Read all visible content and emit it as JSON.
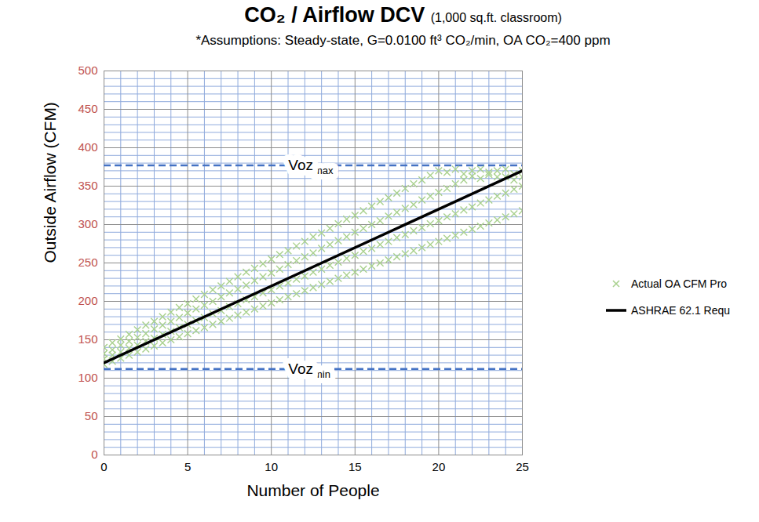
{
  "chart_data": {
    "type": "scatter",
    "title": "CO₂ / Airflow DCV",
    "title_note": "(1,000 sq.ft. classroom)",
    "subtitle": "*Assumptions: Steady-state, G=0.0100 ft³ CO₂/min, OA CO₂=400 ppm",
    "x_label": "Number of People",
    "y_label": "Outside Airflow (CFM)",
    "xlim": [
      0,
      25
    ],
    "xticks": [
      0,
      5,
      10,
      15,
      20,
      25
    ],
    "ylim": [
      0,
      500
    ],
    "yticks": [
      0,
      50,
      100,
      150,
      200,
      250,
      300,
      350,
      400,
      450,
      500
    ],
    "grid": true,
    "legend": "right",
    "reference_lines": [
      {
        "value": 377,
        "label": "Voz",
        "label_subscript": "max",
        "color": "#4472c4",
        "line_style": "dashed"
      },
      {
        "value": 112,
        "label": "Voz",
        "label_subscript": "min",
        "color": "#4472c4",
        "line_style": "dashed"
      }
    ],
    "series": [
      {
        "name": "Actual OA CFM Pro",
        "type": "scatter",
        "marker": "x",
        "color": "#a9d18e",
        "x": [
          0,
          0,
          0,
          0,
          0.5,
          0.5,
          0.5,
          0.5,
          1,
          1,
          1,
          1,
          1.5,
          1.5,
          1.5,
          1.5,
          2,
          2,
          2,
          2,
          2.5,
          2.5,
          2.5,
          2.5,
          3,
          3,
          3,
          3,
          3.5,
          3.5,
          3.5,
          3.5,
          4,
          4,
          4,
          4,
          4.5,
          4.5,
          4.5,
          4.5,
          5,
          5,
          5,
          5,
          5.5,
          5.5,
          5.5,
          5.5,
          6,
          6,
          6,
          6,
          6.5,
          6.5,
          6.5,
          6.5,
          7,
          7,
          7,
          7,
          7.5,
          7.5,
          7.5,
          7.5,
          8,
          8,
          8,
          8,
          8.5,
          8.5,
          8.5,
          8.5,
          9,
          9,
          9,
          9,
          9.5,
          9.5,
          9.5,
          9.5,
          10,
          10,
          10,
          10,
          10.5,
          10.5,
          10.5,
          10.5,
          11,
          11,
          11,
          11,
          11.5,
          11.5,
          11.5,
          11.5,
          12,
          12,
          12,
          12,
          12.5,
          12.5,
          12.5,
          12.5,
          13,
          13,
          13,
          13,
          13.5,
          13.5,
          13.5,
          13.5,
          14,
          14,
          14,
          14,
          14.5,
          14.5,
          14.5,
          14.5,
          15,
          15,
          15,
          15,
          15.5,
          15.5,
          15.5,
          15.5,
          16,
          16,
          16,
          16,
          16.5,
          16.5,
          16.5,
          16.5,
          17,
          17,
          17,
          17,
          17.5,
          17.5,
          17.5,
          17.5,
          18,
          18,
          18,
          18,
          18.5,
          18.5,
          18.5,
          18.5,
          19,
          19,
          19,
          19,
          19.5,
          19.5,
          19.5,
          19.5,
          20,
          20,
          20,
          20,
          20.5,
          20.5,
          20.5,
          20.5,
          21,
          21,
          21,
          21,
          21.5,
          21.5,
          21.5,
          21.5,
          22,
          22,
          22,
          22,
          22.5,
          22.5,
          22.5,
          22.5,
          23,
          23,
          23,
          23,
          23.5,
          23.5,
          23.5,
          23.5,
          24,
          24,
          24,
          24,
          24.5,
          24.5,
          24.5,
          24.5,
          25,
          25,
          25,
          25
        ],
        "values": [
          118,
          125,
          132,
          140,
          122,
          130,
          137,
          146,
          126,
          134,
          143,
          151,
          130,
          139,
          148,
          157,
          134,
          143,
          153,
          163,
          138,
          148,
          158,
          169,
          142,
          152,
          164,
          174,
          146,
          157,
          169,
          180,
          150,
          161,
          174,
          186,
          154,
          166,
          179,
          192,
          158,
          170,
          185,
          197,
          162,
          175,
          190,
          203,
          166,
          179,
          195,
          209,
          170,
          184,
          200,
          215,
          174,
          188,
          206,
          220,
          178,
          193,
          211,
          226,
          182,
          197,
          216,
          232,
          186,
          202,
          221,
          238,
          190,
          206,
          227,
          243,
          194,
          211,
          232,
          249,
          198,
          215,
          237,
          255,
          202,
          220,
          242,
          261,
          206,
          224,
          248,
          266,
          210,
          229,
          253,
          272,
          214,
          233,
          258,
          278,
          218,
          238,
          263,
          284,
          222,
          242,
          269,
          289,
          226,
          247,
          274,
          295,
          230,
          251,
          279,
          301,
          234,
          256,
          284,
          307,
          238,
          260,
          290,
          312,
          242,
          265,
          295,
          318,
          246,
          269,
          300,
          324,
          250,
          274,
          305,
          330,
          254,
          278,
          311,
          335,
          258,
          283,
          316,
          341,
          262,
          287,
          321,
          347,
          266,
          292,
          326,
          353,
          270,
          296,
          332,
          358,
          274,
          301,
          337,
          364,
          278,
          305,
          342,
          370,
          282,
          310,
          347,
          368,
          286,
          314,
          353,
          372,
          290,
          319,
          358,
          366,
          294,
          323,
          363,
          370,
          298,
          328,
          360,
          372,
          302,
          332,
          365,
          368,
          306,
          337,
          370,
          362,
          310,
          341,
          362,
          372,
          314,
          346,
          366,
          358,
          318,
          350,
          362,
          370
        ]
      },
      {
        "name": "ASHRAE 62.1 Requ",
        "type": "line",
        "line_style": "solid",
        "color": "#000000",
        "x": [
          0,
          25
        ],
        "values": [
          120,
          370
        ]
      }
    ]
  }
}
